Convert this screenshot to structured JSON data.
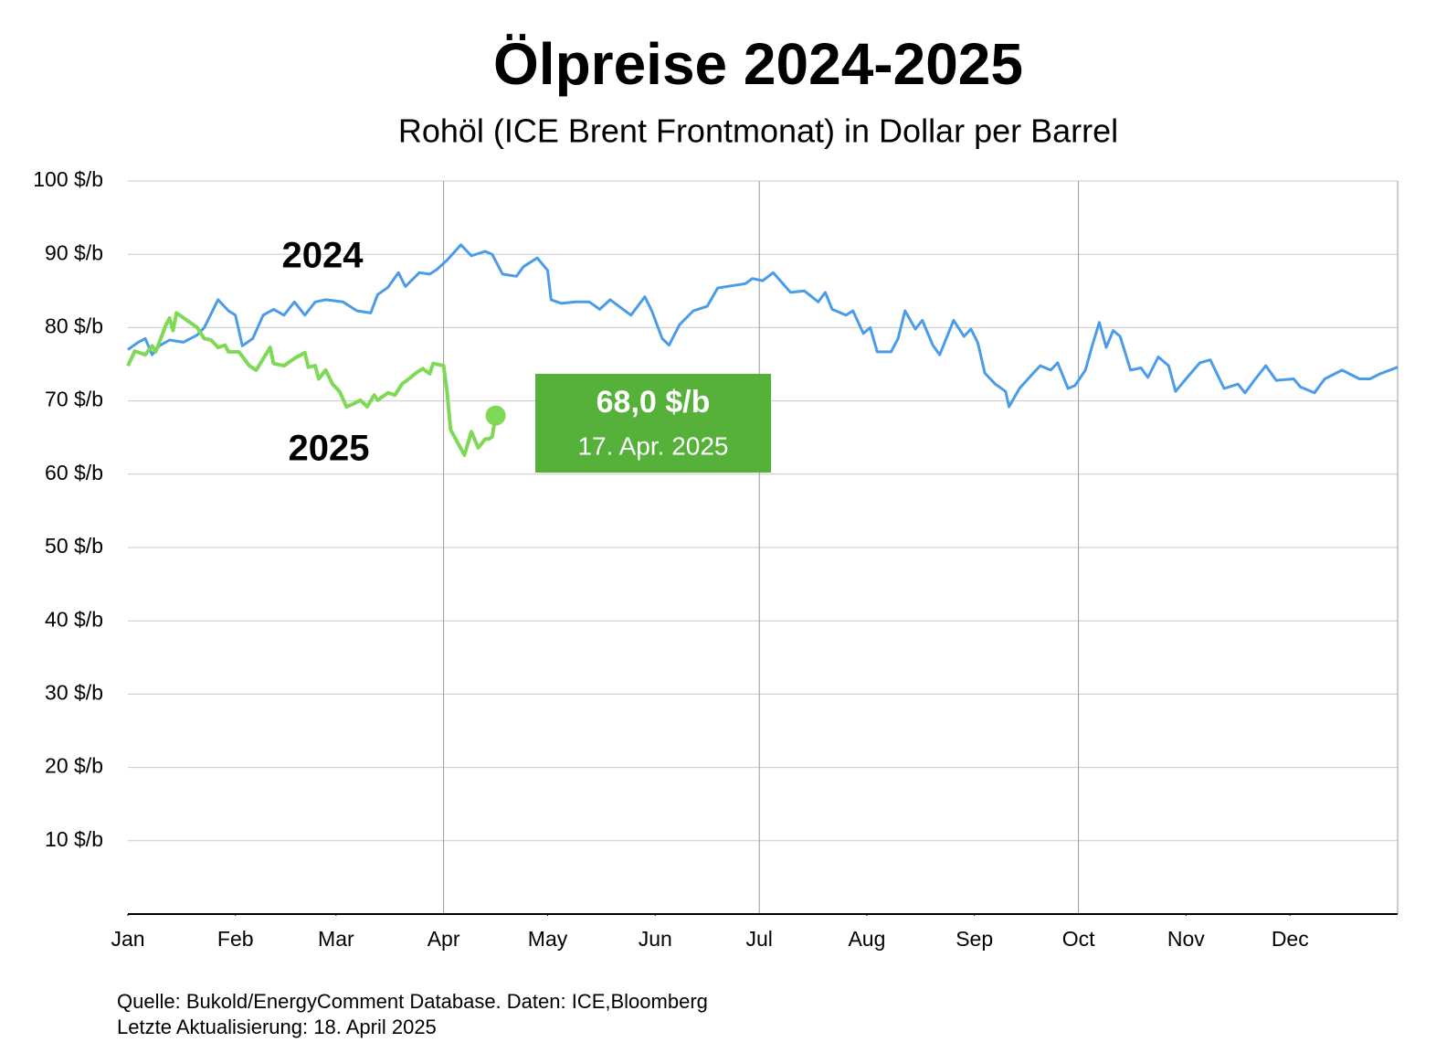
{
  "chart_data": {
    "type": "line",
    "title": "Ölpreise 2024-2025",
    "subtitle": "Rohöl (ICE Brent Frontmonat) in Dollar per Barrel",
    "xlim": [
      0,
      366
    ],
    "xticks": [
      {
        "value": 0,
        "label": "Jan"
      },
      {
        "value": 31,
        "label": "Feb"
      },
      {
        "value": 60,
        "label": "Mar"
      },
      {
        "value": 91,
        "label": "Apr"
      },
      {
        "value": 121,
        "label": "May"
      },
      {
        "value": 152,
        "label": "Jun"
      },
      {
        "value": 182,
        "label": "Jul"
      },
      {
        "value": 213,
        "label": "Aug"
      },
      {
        "value": 244,
        "label": "Sep"
      },
      {
        "value": 274,
        "label": "Oct"
      },
      {
        "value": 305,
        "label": "Nov"
      },
      {
        "value": 335,
        "label": "Dec"
      }
    ],
    "ylim": [
      0,
      100
    ],
    "yticks": [
      {
        "value": 10,
        "label": "10 $/b"
      },
      {
        "value": 20,
        "label": "20 $/b"
      },
      {
        "value": 30,
        "label": "30 $/b"
      },
      {
        "value": 40,
        "label": "40 $/b"
      },
      {
        "value": 50,
        "label": "50 $/b"
      },
      {
        "value": 60,
        "label": "60 $/b"
      },
      {
        "value": 70,
        "label": "70 $/b"
      },
      {
        "value": 80,
        "label": "80 $/b"
      },
      {
        "value": 90,
        "label": "90 $/b"
      },
      {
        "value": 100,
        "label": "100 $/b"
      }
    ],
    "grid": true,
    "series": [
      {
        "name": "2024",
        "color": "#4a9be8",
        "x": [
          0,
          3,
          5,
          7,
          9,
          12,
          16,
          20,
          22,
          26,
          29,
          31,
          33,
          36,
          39,
          42,
          45,
          48,
          51,
          54,
          57,
          62,
          66,
          70,
          72,
          75,
          78,
          80,
          84,
          87,
          89,
          92,
          96,
          99,
          103,
          105,
          108,
          112,
          114,
          118,
          121,
          122,
          125,
          129,
          133,
          136,
          139,
          145,
          149,
          151,
          154,
          156,
          159,
          163,
          167,
          170,
          174,
          178,
          180,
          183,
          186,
          191,
          195,
          199,
          201,
          203,
          207,
          209,
          212,
          214,
          216,
          220,
          222,
          224,
          227,
          229,
          232,
          234,
          238,
          241,
          243,
          245,
          247,
          250,
          253,
          254,
          257,
          261,
          263,
          266,
          268,
          271,
          273,
          276,
          278,
          280,
          282,
          284,
          286,
          289,
          292,
          294,
          297,
          300,
          302,
          305,
          309,
          312,
          316,
          320,
          322,
          325,
          328,
          331,
          336,
          338,
          342,
          345,
          350,
          355,
          358,
          361,
          366
        ],
        "values": [
          77,
          78,
          78.5,
          76.3,
          77.5,
          78.3,
          78,
          79,
          80,
          83.8,
          82.3,
          81.7,
          77.5,
          78.5,
          81.7,
          82.5,
          81.7,
          83.5,
          81.7,
          83.5,
          83.8,
          83.5,
          82.3,
          82,
          84.5,
          85.5,
          87.5,
          85.6,
          87.5,
          87.3,
          87.9,
          89.2,
          91.3,
          89.8,
          90.4,
          90,
          87.3,
          87,
          88.3,
          89.5,
          87.8,
          83.8,
          83.3,
          83.5,
          83.5,
          82.5,
          83.8,
          81.7,
          84.2,
          82.3,
          78.5,
          77.6,
          80.4,
          82.3,
          82.9,
          85.4,
          85.7,
          86,
          86.7,
          86.4,
          87.5,
          84.8,
          85,
          83.5,
          84.8,
          82.5,
          81.7,
          82.3,
          79.2,
          80,
          76.7,
          76.7,
          78.5,
          82.3,
          79.8,
          81,
          77.6,
          76.3,
          81,
          78.8,
          79.8,
          77.9,
          73.8,
          72.3,
          71.3,
          69.2,
          71.7,
          73.8,
          74.8,
          74.2,
          75.2,
          71.7,
          72.1,
          74.2,
          77.6,
          80.7,
          77.3,
          79.6,
          78.8,
          74.2,
          74.5,
          73.2,
          76,
          74.8,
          71.3,
          73,
          75.2,
          75.6,
          71.7,
          72.3,
          71.1,
          73,
          74.8,
          72.8,
          73,
          71.9,
          71.1,
          73,
          74.2,
          73,
          73,
          73.7,
          74.6
        ]
      },
      {
        "name": "2025",
        "color": "#7ed957",
        "x": [
          0,
          2,
          5,
          7,
          8,
          11,
          12,
          13,
          14,
          17,
          20,
          22,
          24,
          26,
          28,
          29,
          32,
          35,
          37,
          41,
          42,
          45,
          48,
          51,
          52,
          54,
          55,
          57,
          59,
          61,
          63,
          65,
          67,
          69,
          71,
          72,
          75,
          77,
          79,
          81,
          83,
          85,
          87,
          88,
          91,
          92,
          93,
          97,
          99,
          101,
          103,
          104,
          105,
          106
        ],
        "values": [
          74.8,
          76.8,
          76.3,
          77.5,
          76.7,
          80.4,
          81.3,
          79.6,
          82,
          81,
          80,
          78.5,
          78.3,
          77.3,
          77.6,
          76.7,
          76.7,
          74.8,
          74.2,
          77.3,
          75.1,
          74.8,
          75.8,
          76.6,
          74.6,
          74.8,
          73,
          74.2,
          72.3,
          71.3,
          69.2,
          69.6,
          70.1,
          69.2,
          70.8,
          70.1,
          71.1,
          70.8,
          72.3,
          73,
          73.8,
          74.4,
          73.7,
          75.1,
          74.8,
          71.3,
          66.1,
          62.6,
          65.8,
          63.6,
          64.8,
          64.8,
          65.1,
          68.0
        ]
      }
    ],
    "annotation": {
      "text": "68,0 $/b",
      "date": "17. Apr. 2025"
    },
    "source": [
      "Quelle: Bukold/EnergyComment Database. Daten: ICE,Bloomberg",
      "Letzte Aktualisierung: 18. April 2025"
    ]
  }
}
